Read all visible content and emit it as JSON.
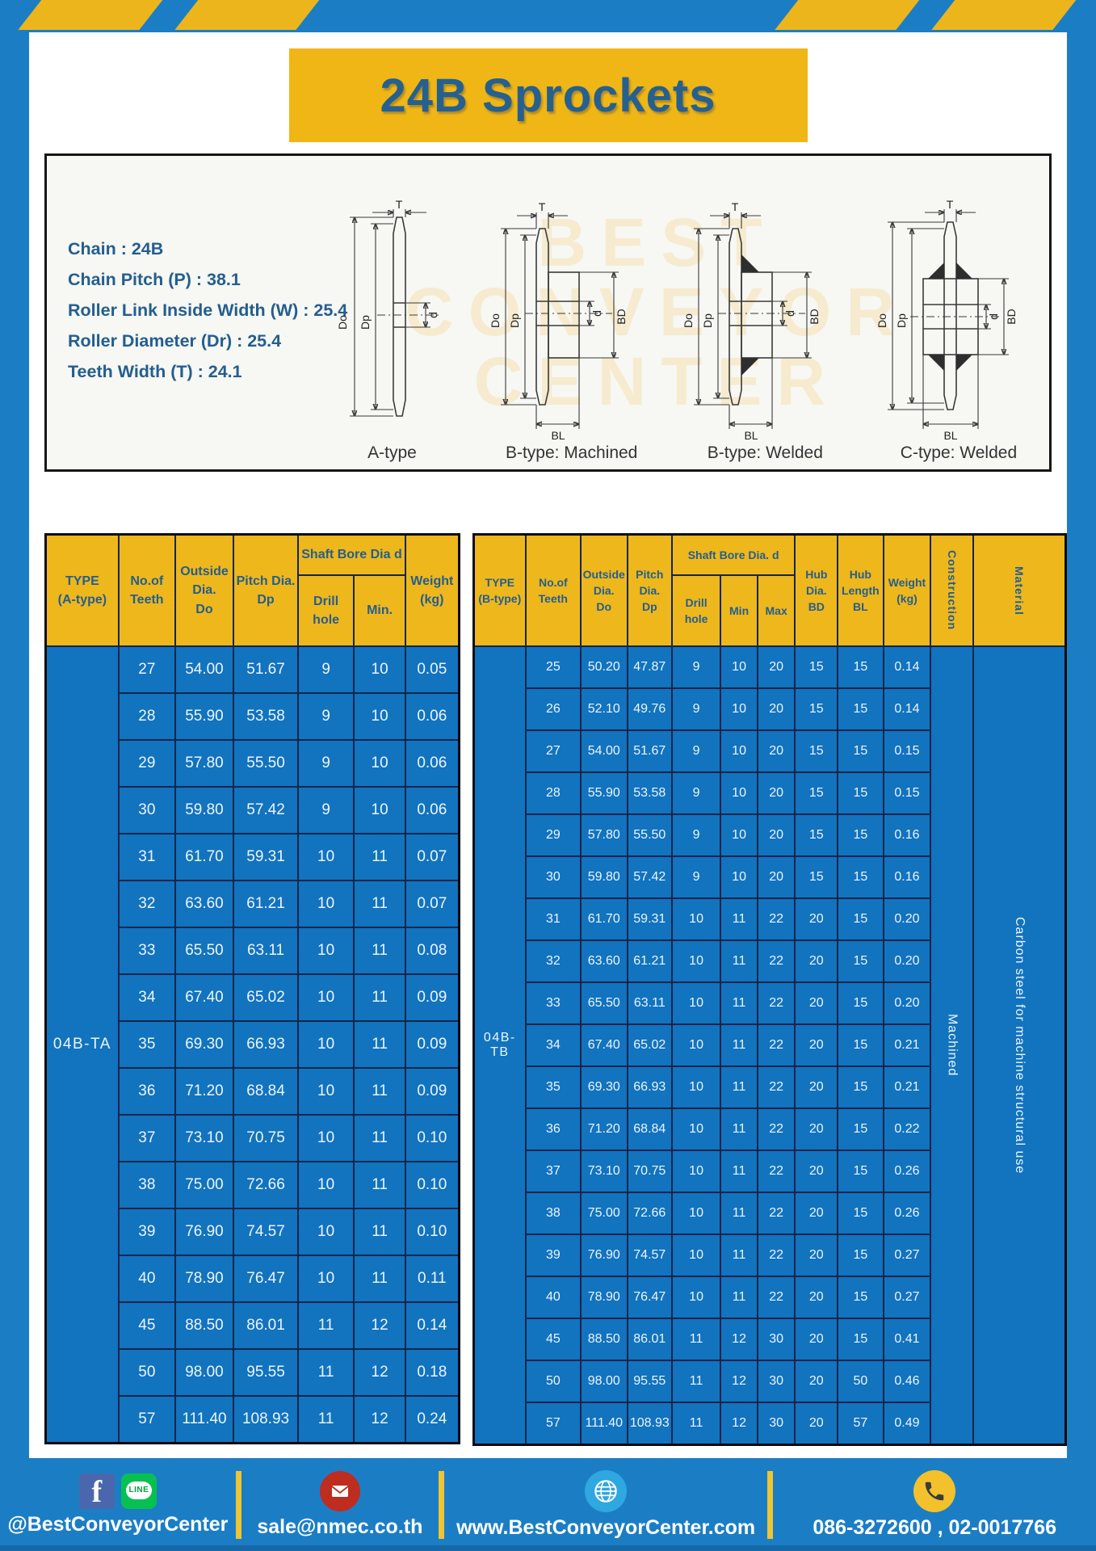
{
  "page": {
    "title": "24B Sprockets",
    "watermark_line1": "BEST",
    "watermark_line2": "CONVEYOR",
    "watermark_line3": "CENTER"
  },
  "specs": {
    "lines": [
      "Chain : 24B",
      "Chain Pitch (P) : 38.1",
      "Roller Link Inside Width (W) : 25.4",
      "Roller Diameter (Dr) : 25.4",
      "Teeth Width (T) : 24.1"
    ]
  },
  "diagrams": {
    "captions": [
      "A-type",
      "B-type: Machined",
      "B-type: Welded",
      "C-type: Welded"
    ],
    "dims": {
      "t": "T",
      "do": "Do",
      "dp": "Dp",
      "d": "d",
      "bd": "BD",
      "bl": "BL"
    }
  },
  "table_a": {
    "headers": {
      "type": "TYPE\n(A-type)",
      "teeth": "No.of\nTeeth",
      "outside": "Outside\nDia.\nDo",
      "pitch": "Pitch Dia.\nDp",
      "shaft": "Shaft Bore Dia d",
      "drill": "Drill hole",
      "min": "Min.",
      "weight": "Weight\n(kg)"
    },
    "type_value": "04B-TA",
    "rows": [
      [
        "27",
        "54.00",
        "51.67",
        "9",
        "10",
        "0.05"
      ],
      [
        "28",
        "55.90",
        "53.58",
        "9",
        "10",
        "0.06"
      ],
      [
        "29",
        "57.80",
        "55.50",
        "9",
        "10",
        "0.06"
      ],
      [
        "30",
        "59.80",
        "57.42",
        "9",
        "10",
        "0.06"
      ],
      [
        "31",
        "61.70",
        "59.31",
        "10",
        "11",
        "0.07"
      ],
      [
        "32",
        "63.60",
        "61.21",
        "10",
        "11",
        "0.07"
      ],
      [
        "33",
        "65.50",
        "63.11",
        "10",
        "11",
        "0.08"
      ],
      [
        "34",
        "67.40",
        "65.02",
        "10",
        "11",
        "0.09"
      ],
      [
        "35",
        "69.30",
        "66.93",
        "10",
        "11",
        "0.09"
      ],
      [
        "36",
        "71.20",
        "68.84",
        "10",
        "11",
        "0.09"
      ],
      [
        "37",
        "73.10",
        "70.75",
        "10",
        "11",
        "0.10"
      ],
      [
        "38",
        "75.00",
        "72.66",
        "10",
        "11",
        "0.10"
      ],
      [
        "39",
        "76.90",
        "74.57",
        "10",
        "11",
        "0.10"
      ],
      [
        "40",
        "78.90",
        "76.47",
        "10",
        "11",
        "0.11"
      ],
      [
        "45",
        "88.50",
        "86.01",
        "11",
        "12",
        "0.14"
      ],
      [
        "50",
        "98.00",
        "95.55",
        "11",
        "12",
        "0.18"
      ],
      [
        "57",
        "111.40",
        "108.93",
        "11",
        "12",
        "0.24"
      ]
    ]
  },
  "table_b": {
    "headers": {
      "type": "TYPE\n(B-type)",
      "teeth": "No.of\nTeeth",
      "outside": "Outside\nDia.\nDo",
      "pitch": "Pitch\nDia.\nDp",
      "shaft": "Shaft Bore Dia.  d",
      "drill": "Drill hole",
      "min": "Min",
      "max": "Max",
      "hub_dia": "Hub\nDia.\nBD",
      "hub_len": "Hub\nLength\nBL",
      "weight": "Weight\n(kg)",
      "construction": "Construction",
      "material": "Material"
    },
    "type_value": "04B-TB",
    "construction": "Machined",
    "material": "Carbon steel for machine structural use",
    "rows": [
      [
        "25",
        "50.20",
        "47.87",
        "9",
        "10",
        "20",
        "15",
        "15",
        "0.14"
      ],
      [
        "26",
        "52.10",
        "49.76",
        "9",
        "10",
        "20",
        "15",
        "15",
        "0.14"
      ],
      [
        "27",
        "54.00",
        "51.67",
        "9",
        "10",
        "20",
        "15",
        "15",
        "0.15"
      ],
      [
        "28",
        "55.90",
        "53.58",
        "9",
        "10",
        "20",
        "15",
        "15",
        "0.15"
      ],
      [
        "29",
        "57.80",
        "55.50",
        "9",
        "10",
        "20",
        "15",
        "15",
        "0.16"
      ],
      [
        "30",
        "59.80",
        "57.42",
        "9",
        "10",
        "20",
        "15",
        "15",
        "0.16"
      ],
      [
        "31",
        "61.70",
        "59.31",
        "10",
        "11",
        "22",
        "20",
        "15",
        "0.20"
      ],
      [
        "32",
        "63.60",
        "61.21",
        "10",
        "11",
        "22",
        "20",
        "15",
        "0.20"
      ],
      [
        "33",
        "65.50",
        "63.11",
        "10",
        "11",
        "22",
        "20",
        "15",
        "0.20"
      ],
      [
        "34",
        "67.40",
        "65.02",
        "10",
        "11",
        "22",
        "20",
        "15",
        "0.21"
      ],
      [
        "35",
        "69.30",
        "66.93",
        "10",
        "11",
        "22",
        "20",
        "15",
        "0.21"
      ],
      [
        "36",
        "71.20",
        "68.84",
        "10",
        "11",
        "22",
        "20",
        "15",
        "0.22"
      ],
      [
        "37",
        "73.10",
        "70.75",
        "10",
        "11",
        "22",
        "20",
        "15",
        "0.26"
      ],
      [
        "38",
        "75.00",
        "72.66",
        "10",
        "11",
        "22",
        "20",
        "15",
        "0.26"
      ],
      [
        "39",
        "76.90",
        "74.57",
        "10",
        "11",
        "22",
        "20",
        "15",
        "0.27"
      ],
      [
        "40",
        "78.90",
        "76.47",
        "10",
        "11",
        "22",
        "20",
        "15",
        "0.27"
      ],
      [
        "45",
        "88.50",
        "86.01",
        "11",
        "12",
        "30",
        "20",
        "15",
        "0.41"
      ],
      [
        "50",
        "98.00",
        "95.55",
        "11",
        "12",
        "30",
        "20",
        "50",
        "0.46"
      ],
      [
        "57",
        "111.40",
        "108.93",
        "11",
        "12",
        "30",
        "20",
        "57",
        "0.49"
      ]
    ]
  },
  "footer": {
    "social_label": "@BestConveyorCenter",
    "facebook_glyph": "f",
    "line_glyph": "LINE",
    "email": "sale@nmec.co.th",
    "website": "www.BestConveyorCenter.com",
    "phone": "086-3272600 , 02-0017766"
  },
  "colors": {
    "frame_blue": "#1b7ec5",
    "cell_blue": "#1273bf",
    "accent_yellow": "#eeb71c",
    "header_text_blue": "#245e8e",
    "grid_navy": "#13264a"
  }
}
